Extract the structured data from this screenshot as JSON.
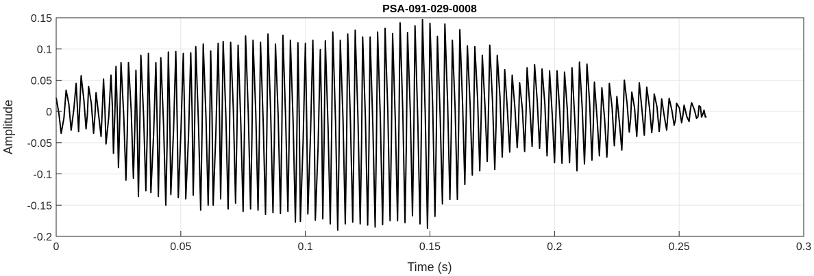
{
  "chart_data": {
    "type": "line",
    "title": "PSA-091-029-0008",
    "xlabel": "Time (s)",
    "ylabel": "Amplitude",
    "xlim": [
      0,
      0.3
    ],
    "ylim": [
      -0.2,
      0.15
    ],
    "xticks": [
      0,
      0.05,
      0.1,
      0.15,
      0.2,
      0.25,
      0.3
    ],
    "yticks": [
      -0.2,
      -0.15,
      -0.1,
      -0.05,
      0,
      0.05,
      0.1,
      0.15
    ],
    "xtick_labels": [
      "0",
      "0.05",
      "0.1",
      "0.15",
      "0.2",
      "0.25",
      "0.3"
    ],
    "ytick_labels": [
      "-0.2",
      "-0.15",
      "-0.1",
      "-0.05",
      "0",
      "0.05",
      "0.1",
      "0.15"
    ],
    "grid": true,
    "box": true,
    "colors": {
      "line": "#000000",
      "grid": "#e6e6e6",
      "axis": "#262626"
    },
    "series": [
      {
        "peaks": [
          [
            0.0,
            0.022
          ],
          [
            0.004,
            0.034
          ],
          [
            0.008,
            0.045
          ],
          [
            0.01,
            0.057
          ],
          [
            0.013,
            0.04
          ],
          [
            0.016,
            0.03
          ],
          [
            0.019,
            0.052
          ],
          [
            0.022,
            0.058
          ],
          [
            0.024,
            0.072
          ],
          [
            0.026,
            0.078
          ],
          [
            0.029,
            0.078
          ],
          [
            0.032,
            0.066
          ],
          [
            0.034,
            0.09
          ],
          [
            0.037,
            0.093
          ],
          [
            0.04,
            0.078
          ],
          [
            0.042,
            0.086
          ],
          [
            0.045,
            0.095
          ],
          [
            0.048,
            0.096
          ],
          [
            0.051,
            0.093
          ],
          [
            0.054,
            0.094
          ],
          [
            0.056,
            0.104
          ],
          [
            0.059,
            0.108
          ],
          [
            0.062,
            0.097
          ],
          [
            0.065,
            0.109
          ],
          [
            0.067,
            0.112
          ],
          [
            0.07,
            0.111
          ],
          [
            0.073,
            0.106
          ],
          [
            0.076,
            0.121
          ],
          [
            0.079,
            0.114
          ],
          [
            0.082,
            0.111
          ],
          [
            0.085,
            0.124
          ],
          [
            0.088,
            0.108
          ],
          [
            0.091,
            0.122
          ],
          [
            0.094,
            0.114
          ],
          [
            0.097,
            0.11
          ],
          [
            0.1,
            0.109
          ],
          [
            0.103,
            0.114
          ],
          [
            0.106,
            0.099
          ],
          [
            0.108,
            0.113
          ],
          [
            0.111,
            0.127
          ],
          [
            0.114,
            0.114
          ],
          [
            0.117,
            0.124
          ],
          [
            0.12,
            0.13
          ],
          [
            0.123,
            0.119
          ],
          [
            0.126,
            0.119
          ],
          [
            0.129,
            0.127
          ],
          [
            0.132,
            0.133
          ],
          [
            0.135,
            0.125
          ],
          [
            0.138,
            0.142
          ],
          [
            0.141,
            0.126
          ],
          [
            0.144,
            0.137
          ],
          [
            0.147,
            0.147
          ],
          [
            0.15,
            0.141
          ],
          [
            0.153,
            0.12
          ],
          [
            0.156,
            0.14
          ],
          [
            0.159,
            0.114
          ],
          [
            0.162,
            0.131
          ],
          [
            0.165,
            0.105
          ],
          [
            0.168,
            0.104
          ],
          [
            0.171,
            0.09
          ],
          [
            0.174,
            0.106
          ],
          [
            0.177,
            0.09
          ],
          [
            0.18,
            0.067
          ],
          [
            0.183,
            0.058
          ],
          [
            0.186,
            0.046
          ],
          [
            0.189,
            0.07
          ],
          [
            0.192,
            0.075
          ],
          [
            0.195,
            0.068
          ],
          [
            0.198,
            0.065
          ],
          [
            0.201,
            0.065
          ],
          [
            0.204,
            0.063
          ],
          [
            0.207,
            0.07
          ],
          [
            0.21,
            0.079
          ],
          [
            0.213,
            0.076
          ],
          [
            0.216,
            0.047
          ],
          [
            0.219,
            0.038
          ],
          [
            0.222,
            0.045
          ],
          [
            0.225,
            0.024
          ],
          [
            0.228,
            0.05
          ],
          [
            0.231,
            0.031
          ],
          [
            0.234,
            0.046
          ],
          [
            0.237,
            0.039
          ],
          [
            0.24,
            0.028
          ],
          [
            0.243,
            0.02
          ],
          [
            0.246,
            0.021
          ],
          [
            0.249,
            0.013
          ],
          [
            0.252,
            0.01
          ],
          [
            0.255,
            0.014
          ],
          [
            0.258,
            0.009
          ],
          [
            0.26,
            0.002
          ]
        ],
        "troughs": [
          [
            0.002,
            -0.035
          ],
          [
            0.006,
            -0.03
          ],
          [
            0.009,
            -0.032
          ],
          [
            0.012,
            -0.028
          ],
          [
            0.015,
            -0.035
          ],
          [
            0.018,
            -0.04
          ],
          [
            0.02,
            -0.052
          ],
          [
            0.023,
            -0.067
          ],
          [
            0.025,
            -0.09
          ],
          [
            0.028,
            -0.11
          ],
          [
            0.031,
            -0.107
          ],
          [
            0.033,
            -0.136
          ],
          [
            0.036,
            -0.127
          ],
          [
            0.038,
            -0.13
          ],
          [
            0.041,
            -0.136
          ],
          [
            0.044,
            -0.15
          ],
          [
            0.046,
            -0.133
          ],
          [
            0.049,
            -0.138
          ],
          [
            0.052,
            -0.14
          ],
          [
            0.055,
            -0.134
          ],
          [
            0.058,
            -0.158
          ],
          [
            0.061,
            -0.15
          ],
          [
            0.063,
            -0.15
          ],
          [
            0.066,
            -0.14
          ],
          [
            0.069,
            -0.156
          ],
          [
            0.072,
            -0.147
          ],
          [
            0.075,
            -0.16
          ],
          [
            0.078,
            -0.156
          ],
          [
            0.081,
            -0.158
          ],
          [
            0.084,
            -0.165
          ],
          [
            0.087,
            -0.162
          ],
          [
            0.09,
            -0.163
          ],
          [
            0.093,
            -0.16
          ],
          [
            0.096,
            -0.177
          ],
          [
            0.098,
            -0.176
          ],
          [
            0.101,
            -0.164
          ],
          [
            0.104,
            -0.174
          ],
          [
            0.107,
            -0.172
          ],
          [
            0.11,
            -0.18
          ],
          [
            0.113,
            -0.19
          ],
          [
            0.116,
            -0.18
          ],
          [
            0.119,
            -0.177
          ],
          [
            0.122,
            -0.18
          ],
          [
            0.125,
            -0.182
          ],
          [
            0.128,
            -0.185
          ],
          [
            0.131,
            -0.181
          ],
          [
            0.134,
            -0.175
          ],
          [
            0.137,
            -0.175
          ],
          [
            0.14,
            -0.178
          ],
          [
            0.143,
            -0.167
          ],
          [
            0.146,
            -0.18
          ],
          [
            0.149,
            -0.187
          ],
          [
            0.152,
            -0.168
          ],
          [
            0.155,
            -0.148
          ],
          [
            0.158,
            -0.141
          ],
          [
            0.161,
            -0.141
          ],
          [
            0.164,
            -0.117
          ],
          [
            0.167,
            -0.102
          ],
          [
            0.17,
            -0.095
          ],
          [
            0.173,
            -0.08
          ],
          [
            0.176,
            -0.093
          ],
          [
            0.179,
            -0.073
          ],
          [
            0.182,
            -0.065
          ],
          [
            0.185,
            -0.058
          ],
          [
            0.188,
            -0.064
          ],
          [
            0.191,
            -0.056
          ],
          [
            0.194,
            -0.059
          ],
          [
            0.197,
            -0.071
          ],
          [
            0.2,
            -0.082
          ],
          [
            0.203,
            -0.083
          ],
          [
            0.206,
            -0.082
          ],
          [
            0.209,
            -0.095
          ],
          [
            0.212,
            -0.084
          ],
          [
            0.215,
            -0.078
          ],
          [
            0.218,
            -0.071
          ],
          [
            0.221,
            -0.073
          ],
          [
            0.224,
            -0.055
          ],
          [
            0.227,
            -0.062
          ],
          [
            0.23,
            -0.033
          ],
          [
            0.233,
            -0.04
          ],
          [
            0.236,
            -0.038
          ],
          [
            0.239,
            -0.034
          ],
          [
            0.242,
            -0.032
          ],
          [
            0.245,
            -0.03
          ],
          [
            0.248,
            -0.022
          ],
          [
            0.251,
            -0.018
          ],
          [
            0.254,
            -0.016
          ],
          [
            0.257,
            -0.011
          ],
          [
            0.259,
            -0.009
          ],
          [
            0.261,
            -0.008
          ]
        ]
      }
    ]
  }
}
